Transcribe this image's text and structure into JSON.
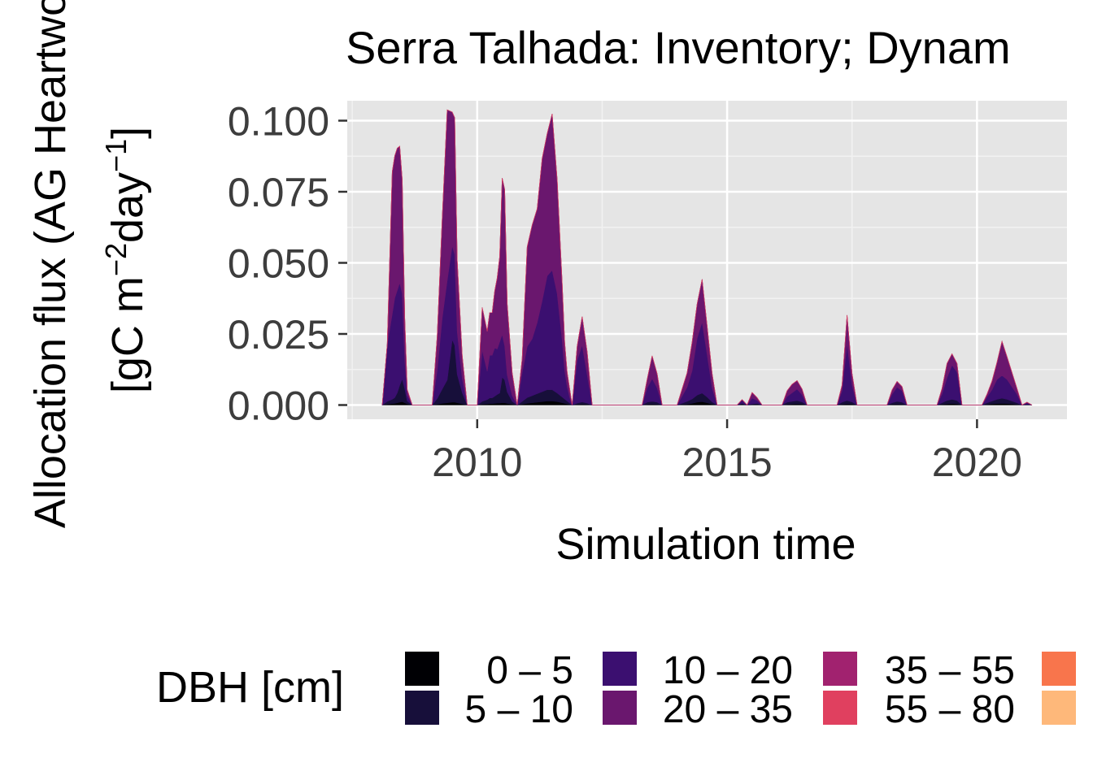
{
  "chart_data": {
    "type": "area",
    "stacked": true,
    "title": "Serra Talhada: Inventory; Dynam",
    "xlabel": "Simulation time",
    "ylabel_line1": "Allocation flux (AG Heartwo",
    "ylabel_line2_prefix": "[gC m",
    "ylabel_sup1": "−2",
    "ylabel_mid": "day",
    "ylabel_sup2": "−1",
    "ylabel_suffix": "]",
    "xlim": [
      2007.4,
      2021.8
    ],
    "ylim": [
      -0.005,
      0.107
    ],
    "xticks": [
      2010,
      2015,
      2020
    ],
    "yticks": [
      0.0,
      0.025,
      0.05,
      0.075,
      0.1
    ],
    "ytick_labels": [
      "0.000",
      "0.025",
      "0.050",
      "0.075",
      "0.100"
    ],
    "grid": true,
    "legend": {
      "title": "DBH [cm]",
      "placement": "bottom",
      "entries": [
        {
          "label": "0 – 5",
          "color": "#000004"
        },
        {
          "label": "5 – 10",
          "color": "#170F3A"
        },
        {
          "label": "10 – 20",
          "color": "#3B0F70"
        },
        {
          "label": "20 – 35",
          "color": "#6A176E"
        },
        {
          "label": "35 – 55",
          "color": "#A1226F"
        },
        {
          "label": "55 – 80",
          "color": "#E0405F"
        },
        {
          "label": "",
          "color": "#F8754C"
        },
        {
          "label": "",
          "color": "#FEB87A"
        }
      ]
    },
    "x": [
      2008.1,
      2008.2,
      2008.3,
      2008.35,
      2008.4,
      2008.45,
      2008.5,
      2008.55,
      2008.6,
      2008.7,
      2009.1,
      2009.2,
      2009.3,
      2009.4,
      2009.5,
      2009.55,
      2009.6,
      2009.7,
      2009.8,
      2009.9,
      2010.0,
      2010.1,
      2010.2,
      2010.25,
      2010.3,
      2010.35,
      2010.4,
      2010.45,
      2010.5,
      2010.55,
      2010.6,
      2010.7,
      2010.8,
      2010.9,
      2011.0,
      2011.1,
      2011.2,
      2011.3,
      2011.4,
      2011.5,
      2011.6,
      2011.7,
      2011.75,
      2011.8,
      2011.85,
      2011.9,
      2012.0,
      2012.1,
      2012.2,
      2012.3,
      2013.3,
      2013.4,
      2013.5,
      2013.6,
      2013.7,
      2014.0,
      2014.2,
      2014.3,
      2014.4,
      2014.5,
      2014.6,
      2014.7,
      2014.8,
      2015.2,
      2015.3,
      2015.4,
      2015.5,
      2015.6,
      2015.7,
      2016.1,
      2016.2,
      2016.3,
      2016.4,
      2016.5,
      2016.6,
      2017.2,
      2017.3,
      2017.4,
      2017.5,
      2017.6,
      2018.2,
      2018.3,
      2018.4,
      2018.5,
      2018.6,
      2019.2,
      2019.3,
      2019.4,
      2019.5,
      2019.6,
      2019.7,
      2020.1,
      2020.2,
      2020.3,
      2020.4,
      2020.5,
      2020.6,
      2020.7,
      2020.8,
      2020.9,
      2021.0,
      2021.1
    ],
    "series": [
      {
        "name": "0 – 5",
        "values": [
          0,
          0.0003,
          0.0005,
          0.0006,
          0.0008,
          0.001,
          0.0012,
          0.0008,
          0.0004,
          0,
          0,
          0.0003,
          0.0006,
          0.0008,
          0.001,
          0.001,
          0.0008,
          0.0004,
          0,
          0,
          0,
          0.0003,
          0.0004,
          0.0005,
          0.0005,
          0.0006,
          0.0007,
          0.0007,
          0.0008,
          0.0008,
          0.0006,
          0.0003,
          0,
          0.0003,
          0.0006,
          0.0008,
          0.001,
          0.0012,
          0.0014,
          0.0014,
          0.0012,
          0.0008,
          0.0006,
          0.0004,
          0.0002,
          0,
          0.0002,
          0.0003,
          0.0002,
          0,
          0,
          0.0002,
          0.0003,
          0.0002,
          0,
          0,
          0.0003,
          0.0006,
          0.001,
          0.0012,
          0.0008,
          0.0003,
          0,
          0,
          0.0002,
          0,
          0.0001,
          0.0002,
          0,
          0,
          0.0002,
          0.0003,
          0.0004,
          0.0003,
          0,
          0,
          0.0002,
          0.0004,
          0.0003,
          0,
          0,
          0.0002,
          0.0003,
          0.0002,
          0,
          0,
          0.0002,
          0.0004,
          0.0005,
          0.0004,
          0,
          0,
          0.0002,
          0.0004,
          0.0005,
          0.0006,
          0.0005,
          0.0004,
          0.0002,
          0,
          0.0001,
          0
        ]
      },
      {
        "name": "5 – 10",
        "values": [
          0,
          0.001,
          0.0015,
          0.002,
          0.0035,
          0.006,
          0.008,
          0.005,
          0.001,
          0,
          0,
          0.002,
          0.005,
          0.008,
          0.022,
          0.02,
          0.01,
          0.004,
          0,
          0,
          0,
          0.001,
          0.0015,
          0.002,
          0.002,
          0.0025,
          0.003,
          0.0035,
          0.009,
          0.008,
          0.004,
          0.001,
          0,
          0.001,
          0.002,
          0.0025,
          0.003,
          0.0035,
          0.004,
          0.004,
          0.003,
          0.002,
          0.0015,
          0.001,
          0.0005,
          0,
          0.0005,
          0.0008,
          0.0005,
          0,
          0,
          0.0008,
          0.001,
          0.0008,
          0,
          0,
          0.001,
          0.0015,
          0.0025,
          0.003,
          0.002,
          0.0008,
          0,
          0,
          0.0004,
          0,
          0.0003,
          0.0004,
          0,
          0,
          0.0008,
          0.001,
          0.0012,
          0.0008,
          0,
          0,
          0.0008,
          0.0012,
          0.0008,
          0,
          0,
          0.0006,
          0.001,
          0.0008,
          0,
          0,
          0.0006,
          0.0012,
          0.0015,
          0.0012,
          0,
          0,
          0.0006,
          0.001,
          0.0015,
          0.0018,
          0.0015,
          0.001,
          0.0006,
          0,
          0.0002,
          0
        ]
      },
      {
        "name": "10 – 20",
        "values": [
          0,
          0.02,
          0.03,
          0.035,
          0.036,
          0.036,
          0.03,
          0.01,
          0.002,
          0,
          0,
          0.01,
          0.025,
          0.035,
          0.033,
          0.032,
          0.015,
          0.005,
          0,
          0,
          0,
          0.018,
          0.01,
          0.015,
          0.015,
          0.017,
          0.016,
          0.018,
          0.015,
          0.012,
          0.006,
          0.002,
          0,
          0.01,
          0.018,
          0.02,
          0.025,
          0.032,
          0.04,
          0.042,
          0.035,
          0.02,
          0.01,
          0.005,
          0.002,
          0,
          0.015,
          0.02,
          0.01,
          0,
          0,
          0.005,
          0.008,
          0.005,
          0,
          0,
          0.005,
          0.01,
          0.02,
          0.025,
          0.015,
          0.005,
          0,
          0,
          0.0012,
          0,
          0.002,
          0.001,
          0,
          0,
          0.002,
          0.003,
          0.004,
          0.0025,
          0,
          0,
          0.004,
          0.02,
          0.006,
          0,
          0,
          0.003,
          0.005,
          0.004,
          0,
          0,
          0.003,
          0.008,
          0.012,
          0.01,
          0,
          0,
          0.002,
          0.004,
          0.007,
          0.008,
          0.007,
          0.005,
          0.003,
          0,
          0.0005,
          0
        ]
      },
      {
        "name": "20 – 35",
        "values": [
          0,
          0,
          0.05,
          0.05,
          0.05,
          0.048,
          0.04,
          0.015,
          0.002,
          0,
          0,
          0.012,
          0.035,
          0.06,
          0.047,
          0.048,
          0.025,
          0.008,
          0,
          0,
          0,
          0.015,
          0.014,
          0.015,
          0.015,
          0.02,
          0.025,
          0.03,
          0.055,
          0.055,
          0.025,
          0.008,
          0,
          0.005,
          0.035,
          0.04,
          0.04,
          0.05,
          0.05,
          0.055,
          0.04,
          0.02,
          0.01,
          0.005,
          0.003,
          0,
          0.005,
          0.01,
          0.008,
          0,
          0,
          0.003,
          0.008,
          0.005,
          0,
          0,
          0.005,
          0.01,
          0.012,
          0.015,
          0.01,
          0.005,
          0,
          0,
          0.0001,
          0,
          0.002,
          0.001,
          0,
          0,
          0.002,
          0.003,
          0.003,
          0.002,
          0,
          0,
          0.002,
          0.01,
          0.004,
          0,
          0,
          0.0015,
          0.002,
          0.0015,
          0,
          0,
          0.002,
          0.005,
          0.004,
          0.003,
          0,
          0,
          0.001,
          0.003,
          0.006,
          0.012,
          0.008,
          0.005,
          0.002,
          0,
          0.0002,
          0
        ]
      },
      {
        "name": "35 – 55",
        "values": [
          0,
          0,
          0,
          0,
          0,
          0,
          0,
          0,
          0,
          0,
          0,
          0,
          0,
          0,
          0,
          0,
          0,
          0,
          0,
          0,
          0,
          0,
          0,
          0,
          0,
          0,
          0,
          0,
          0,
          0,
          0,
          0,
          0,
          0,
          0,
          0,
          0,
          0,
          0,
          0,
          0,
          0,
          0,
          0,
          0,
          0,
          0,
          0,
          0,
          0,
          0,
          0,
          0,
          0,
          0,
          0,
          0,
          0,
          0,
          0,
          0,
          0,
          0,
          0,
          0,
          0,
          0,
          0,
          0,
          0,
          0,
          0,
          0,
          0,
          0,
          0,
          0,
          0,
          0,
          0,
          0,
          0,
          0,
          0,
          0,
          0,
          0,
          0,
          0,
          0,
          0,
          0,
          0,
          0,
          0,
          0,
          0,
          0,
          0,
          0,
          0,
          0
        ]
      },
      {
        "name": "55 – 80",
        "values": [
          0,
          0,
          0,
          0,
          0,
          0,
          0,
          0,
          0,
          0,
          0,
          0,
          0,
          0,
          0,
          0,
          0,
          0,
          0,
          0,
          0,
          0,
          0,
          0,
          0,
          0,
          0,
          0,
          0,
          0,
          0,
          0,
          0,
          0,
          0,
          0,
          0,
          0,
          0,
          0,
          0,
          0,
          0,
          0,
          0,
          0,
          0,
          0,
          0,
          0,
          0,
          0,
          0,
          0,
          0,
          0,
          0,
          0,
          0,
          0,
          0,
          0,
          0,
          0,
          0,
          0,
          0,
          0,
          0,
          0,
          0,
          0,
          0,
          0,
          0,
          0,
          0,
          0,
          0,
          0,
          0,
          0,
          0,
          0,
          0,
          0,
          0,
          0,
          0,
          0,
          0,
          0,
          0,
          0,
          0,
          0,
          0,
          0,
          0,
          0,
          0,
          0
        ]
      }
    ]
  }
}
